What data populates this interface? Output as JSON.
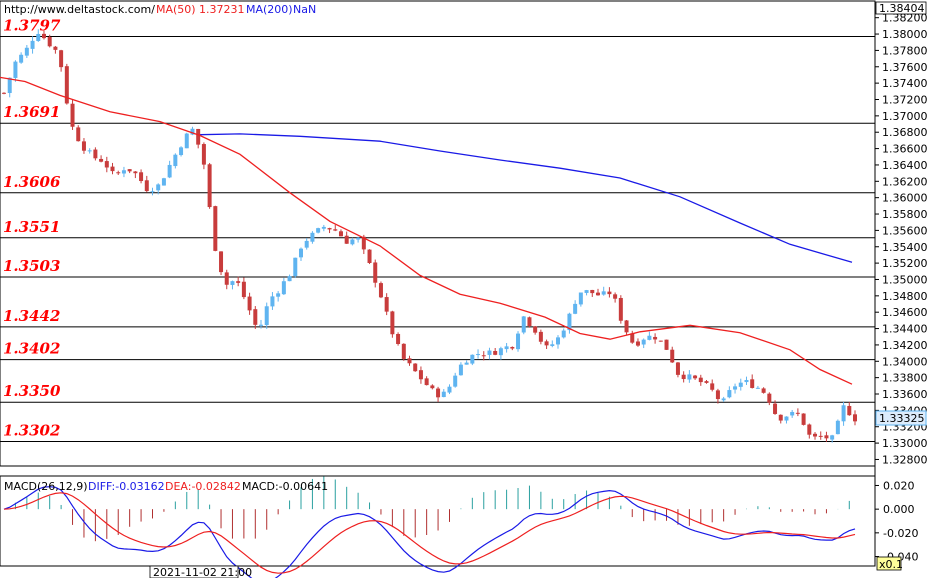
{
  "header": {
    "site": "http://www.deltastock.com/",
    "ma50_label": "MA(50)",
    "ma50_value": "1.37231",
    "ma200_label": "MA(200)",
    "ma200_value": "NaN"
  },
  "price_axis": {
    "top_value": "1.38404",
    "current_value": "1.33325",
    "ticks": [
      "1.38200",
      "1.38000",
      "1.37800",
      "1.37600",
      "1.37400",
      "1.37200",
      "1.37000",
      "1.36800",
      "1.36600",
      "1.36400",
      "1.36200",
      "1.36000",
      "1.35800",
      "1.35600",
      "1.35400",
      "1.35200",
      "1.35000",
      "1.34800",
      "1.34600",
      "1.34400",
      "1.34200",
      "1.34000",
      "1.33800",
      "1.33600",
      "1.33400",
      "1.33200",
      "1.33000",
      "1.32800"
    ]
  },
  "levels": [
    "1.3797",
    "1.3691",
    "1.3606",
    "1.3551",
    "1.3503",
    "1.3442",
    "1.3402",
    "1.3350",
    "1.3302"
  ],
  "macd": {
    "label": "MACD(26,12,9)",
    "diff": "DIFF:-0.03162",
    "dea": "DEA:-0.02842",
    "macd": "MACD:-0.00641",
    "ticks": [
      "0.020",
      "0.000",
      "-0.020",
      "-0.040"
    ]
  },
  "footer": {
    "date": "2021-11-02 21:00",
    "zoom": "x0.1"
  },
  "colors": {
    "bull": "#5fb4f0",
    "bear": "#c83c3c",
    "ma50": "#ee2020",
    "ma200": "#1a1ae6",
    "level_text": "#ff0000",
    "diff_line": "#1a1ae6",
    "dea_line": "#ee2020",
    "macd_pos": "#2aa0a0",
    "macd_neg": "#b03030"
  },
  "chart_data": {
    "type": "candlestick",
    "price_range": [
      1.3272,
      1.38404
    ],
    "horizontal_levels": [
      1.3797,
      1.3691,
      1.3606,
      1.3551,
      1.3503,
      1.3442,
      1.3402,
      1.335,
      1.3302
    ],
    "close_path": [
      1.3728,
      1.3765,
      1.378,
      1.3805,
      1.379,
      1.3775,
      1.3691,
      1.3665,
      1.365,
      1.3645,
      1.3625,
      1.3638,
      1.3628,
      1.361,
      1.3615,
      1.364,
      1.3665,
      1.3685,
      1.365,
      1.3545,
      1.3493,
      1.35,
      1.347,
      1.3435,
      1.3475,
      1.349,
      1.351,
      1.3545,
      1.3555,
      1.3565,
      1.356,
      1.3547,
      1.355,
      1.352,
      1.3485,
      1.344,
      1.3405,
      1.339,
      1.3375,
      1.336,
      1.336,
      1.339,
      1.3405,
      1.341,
      1.341,
      1.3415,
      1.342,
      1.3455,
      1.344,
      1.3415,
      1.3425,
      1.345,
      1.3485,
      1.3485,
      1.348,
      1.3485,
      1.3445,
      1.342,
      1.343,
      1.343,
      1.3415,
      1.3385,
      1.338,
      1.3375,
      1.3365,
      1.3348,
      1.337,
      1.3375,
      1.337,
      1.336,
      1.333,
      1.3335,
      1.3335,
      1.3305,
      1.3308,
      1.3305,
      1.3345,
      1.333
    ],
    "ma50": [
      [
        0,
        1.3747
      ],
      [
        25,
        1.3742
      ],
      [
        60,
        1.3725
      ],
      [
        110,
        1.3705
      ],
      [
        160,
        1.3693
      ],
      [
        200,
        1.3676
      ],
      [
        240,
        1.3653
      ],
      [
        290,
        1.3606
      ],
      [
        330,
        1.3571
      ],
      [
        380,
        1.3541
      ],
      [
        420,
        1.3505
      ],
      [
        460,
        1.3482
      ],
      [
        500,
        1.3471
      ],
      [
        545,
        1.3454
      ],
      [
        580,
        1.3434
      ],
      [
        610,
        1.3427
      ],
      [
        640,
        1.3436
      ],
      [
        690,
        1.3444
      ],
      [
        740,
        1.3435
      ],
      [
        790,
        1.3414
      ],
      [
        820,
        1.339
      ],
      [
        852,
        1.3372
      ]
    ],
    "ma200": [
      [
        200,
        1.3677
      ],
      [
        240,
        1.3678
      ],
      [
        300,
        1.3675
      ],
      [
        380,
        1.3669
      ],
      [
        440,
        1.3657
      ],
      [
        500,
        1.3646
      ],
      [
        560,
        1.3636
      ],
      [
        620,
        1.3624
      ],
      [
        680,
        1.3601
      ],
      [
        740,
        1.3569
      ],
      [
        790,
        1.3543
      ],
      [
        852,
        1.3521
      ]
    ],
    "macd_range": [
      -0.048,
      0.028
    ]
  }
}
